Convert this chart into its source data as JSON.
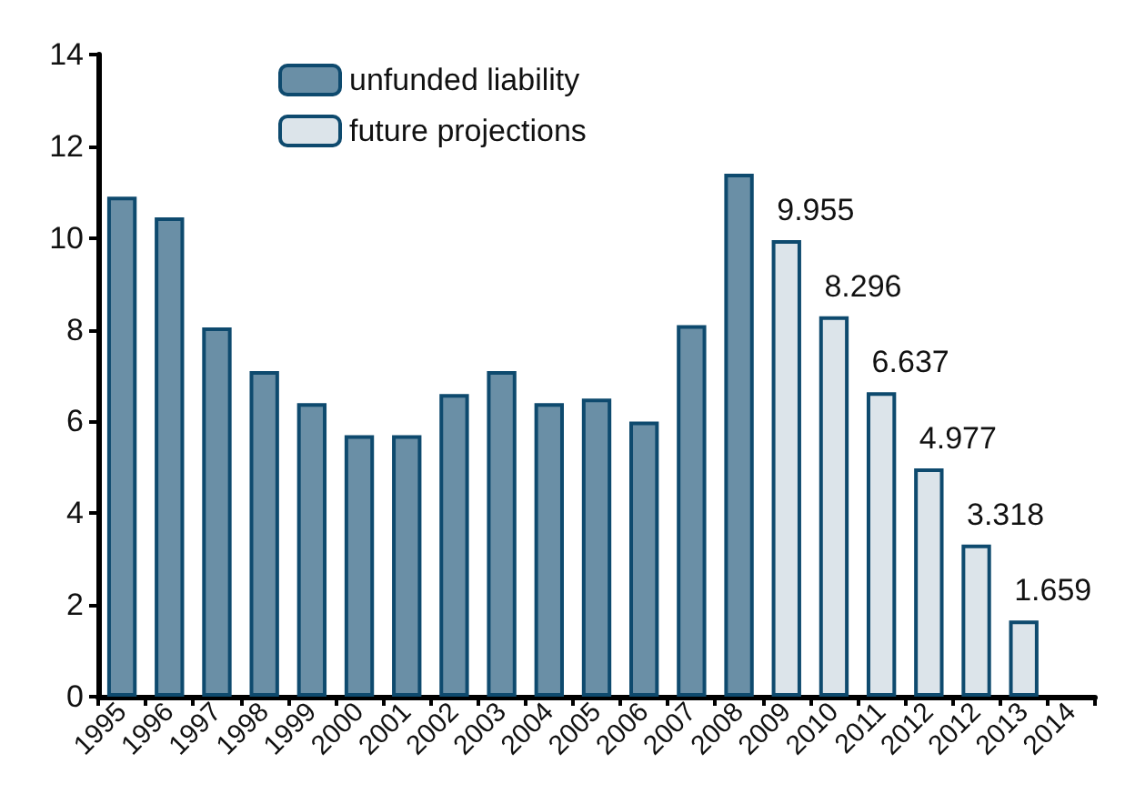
{
  "chart_data": {
    "type": "bar",
    "categories": [
      "1995",
      "1996",
      "1997",
      "1998",
      "1999",
      "2000",
      "2001",
      "2002",
      "2003",
      "2004",
      "2005",
      "2006",
      "2007",
      "2008",
      "2009",
      "2010",
      "2011",
      "2012",
      "2012",
      "2013",
      "2014"
    ],
    "series": [
      {
        "name": "unfunded liability",
        "color": "#6a8fa6",
        "values": [
          10.9,
          10.45,
          8.05,
          7.1,
          6.4,
          5.7,
          5.7,
          6.6,
          7.1,
          6.4,
          6.5,
          6.0,
          8.1,
          11.4,
          null,
          null,
          null,
          null,
          null,
          null,
          null
        ]
      },
      {
        "name": "future projections",
        "color": "#dce4ea",
        "values": [
          null,
          null,
          null,
          null,
          null,
          null,
          null,
          null,
          null,
          null,
          null,
          null,
          null,
          null,
          9.955,
          8.296,
          6.637,
          4.977,
          3.318,
          1.659,
          null
        ],
        "value_labels": [
          null,
          null,
          null,
          null,
          null,
          null,
          null,
          null,
          null,
          null,
          null,
          null,
          null,
          null,
          "9.955",
          "8.296",
          "6.637",
          "4.977",
          "3.318",
          "1.659",
          null
        ]
      }
    ],
    "ylim": [
      0,
      14
    ],
    "yticks": [
      0,
      2,
      4,
      6,
      8,
      10,
      12,
      14
    ],
    "grid": false,
    "legend": "top left"
  }
}
